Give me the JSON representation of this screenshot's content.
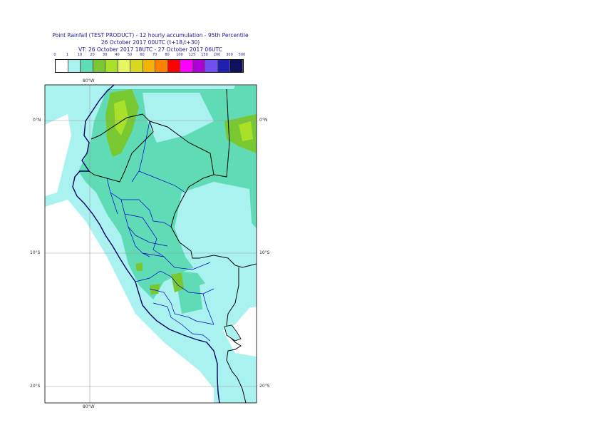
{
  "title": {
    "line1": "Point Rainfall (TEST PRODUCT) - 12 hourly accumulation - 95th Percentile",
    "line2": "26 October 2017 00UTC (t+18,t+30)",
    "line3": "VT: 26 October 2017 18UTC - 27 October 2017 06UTC"
  },
  "legend": {
    "thresholds": [
      "0",
      "1",
      "10",
      "20",
      "30",
      "40",
      "50",
      "60",
      "70",
      "80",
      "100",
      "125",
      "150",
      "200",
      "300",
      "500"
    ],
    "colors": [
      "#ffffff",
      "#aaf2f0",
      "#5fdcb5",
      "#78c832",
      "#a8e02a",
      "#e6f560",
      "#d8d820",
      "#f5b400",
      "#ff7f00",
      "#ff0000",
      "#ff00ff",
      "#b000d8",
      "#7050f0",
      "#2020b0",
      "#101060"
    ]
  },
  "map": {
    "lon_label_top": "80°W",
    "lon_label_bottom": "80°W",
    "lat_labels": [
      "0°N",
      "10°S",
      "20°S"
    ],
    "lat_labels_right": [
      "0°N",
      "10°S",
      "20°S"
    ],
    "colors": {
      "sea": "#aaf2f0",
      "land_low": "#5fdcb5",
      "land_med": "#78c832",
      "land_high": "#a8e02a",
      "coast": "#000066",
      "border": "#000000",
      "admin": "#0000cc",
      "grid": "#999999"
    }
  }
}
